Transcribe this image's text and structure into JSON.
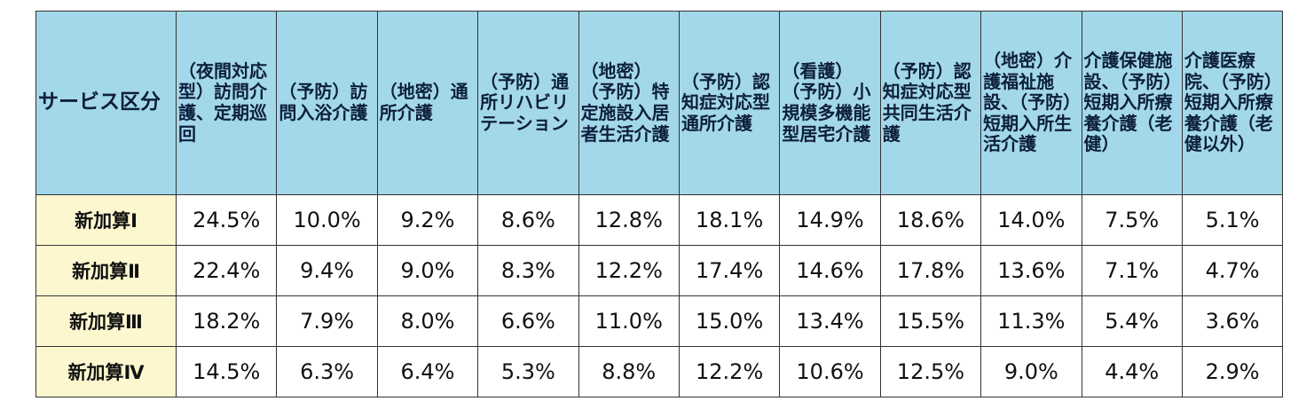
{
  "table": {
    "header": [
      "サービス区分",
      "（夜間対応型）訪問介護、定期巡回",
      "（予防）訪問入浴介護",
      "（地密）通所介護",
      "（予防）通所リハビリテーション",
      "（地密）（予防）特定施設入居者生活介護",
      "（予防）認知症対応型通所介護",
      "（看護）（予防）小規模多機能型居宅介護",
      "（予防）認知症対応型共同生活介護",
      "（地密）介護福祉施設、（予防）短期入所生活介護",
      "介護保健施設、（予防）短期入所療養介護（老健）",
      "介護医療院、（予防）短期入所療養介護（老健以外）"
    ],
    "rows": [
      [
        "新加算Ⅰ",
        "24.5%",
        "10.0%",
        "9.2%",
        "8.6%",
        "12.8%",
        "18.1%",
        "14.9%",
        "18.6%",
        "14.0%",
        "7.5%",
        "5.1%"
      ],
      [
        "新加算Ⅱ",
        "22.4%",
        "9.4%",
        "9.0%",
        "8.3%",
        "12.2%",
        "17.4%",
        "14.6%",
        "17.8%",
        "13.6%",
        "7.1%",
        "4.7%"
      ],
      [
        "新加算Ⅲ",
        "18.2%",
        "7.9%",
        "8.0%",
        "6.6%",
        "11.0%",
        "15.0%",
        "13.4%",
        "15.5%",
        "11.3%",
        "5.4%",
        "3.6%"
      ],
      [
        "新加算Ⅳ",
        "14.5%",
        "6.3%",
        "6.4%",
        "5.3%",
        "8.8%",
        "12.2%",
        "10.6%",
        "12.5%",
        "9.0%",
        "4.4%",
        "2.9%"
      ]
    ]
  }
}
